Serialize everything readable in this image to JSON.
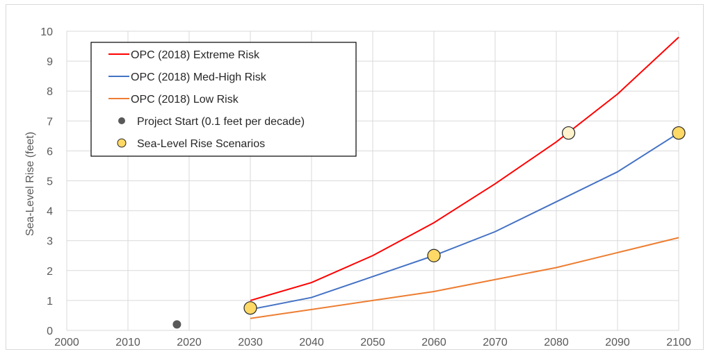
{
  "chart_data": {
    "type": "line",
    "title": "",
    "xlabel": "",
    "ylabel": "Sea-Level Rise (feet)",
    "xlim": [
      2000,
      2100
    ],
    "ylim": [
      0,
      10
    ],
    "x_ticks": [
      "2000",
      "2010",
      "2020",
      "2030",
      "2040",
      "2050",
      "2060",
      "2070",
      "2080",
      "2090",
      "2100"
    ],
    "y_ticks": [
      "0",
      "1",
      "2",
      "3",
      "4",
      "5",
      "6",
      "7",
      "8",
      "9",
      "10"
    ],
    "grid": true,
    "legend_position": "top-left",
    "series": [
      {
        "name": "OPC (2018) Extreme Risk",
        "type": "line",
        "color": "#ff0000",
        "x": [
          2030,
          2040,
          2050,
          2060,
          2070,
          2080,
          2090,
          2100
        ],
        "y": [
          1.0,
          1.6,
          2.5,
          3.6,
          4.9,
          6.3,
          7.9,
          9.8
        ]
      },
      {
        "name": "OPC (2018) Med-High Risk",
        "type": "line",
        "color": "#4472c4",
        "x": [
          2030,
          2040,
          2050,
          2060,
          2070,
          2080,
          2090,
          2100
        ],
        "y": [
          0.7,
          1.1,
          1.8,
          2.5,
          3.3,
          4.3,
          5.3,
          6.6
        ]
      },
      {
        "name": "OPC (2018) Low Risk",
        "type": "line",
        "color": "#ed7d31",
        "x": [
          2030,
          2040,
          2050,
          2060,
          2070,
          2080,
          2090,
          2100
        ],
        "y": [
          0.4,
          0.7,
          1.0,
          1.3,
          1.7,
          2.1,
          2.6,
          3.1
        ]
      },
      {
        "name": "Project Start (0.1 feet per decade)",
        "type": "scatter",
        "color": "#595959",
        "x": [
          2018
        ],
        "y": [
          0.2
        ]
      },
      {
        "name": "Sea-Level Rise Scenarios",
        "type": "scatter",
        "color": "#ffd966",
        "x": [
          2030,
          2060,
          2082,
          2100
        ],
        "y": [
          0.75,
          2.5,
          6.6,
          6.6
        ],
        "point_colors": [
          "#ffd966",
          "#ffd966",
          "#fff2cc",
          "#ffd966"
        ]
      }
    ]
  }
}
